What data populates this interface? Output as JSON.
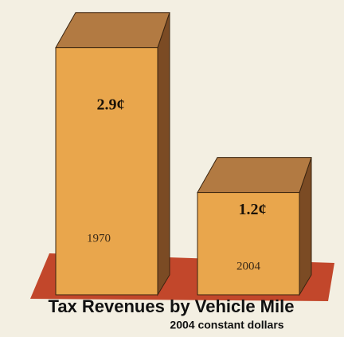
{
  "chart_data": {
    "type": "bar3d",
    "title": "Tax Revenues by Vehicle Mile",
    "subtitle": "2004 constant dollars",
    "categories": [
      "1970",
      "2004"
    ],
    "values": [
      2.9,
      1.2
    ],
    "value_labels": [
      "2.9¢",
      "1.2¢"
    ],
    "color": "#e9a64c"
  }
}
